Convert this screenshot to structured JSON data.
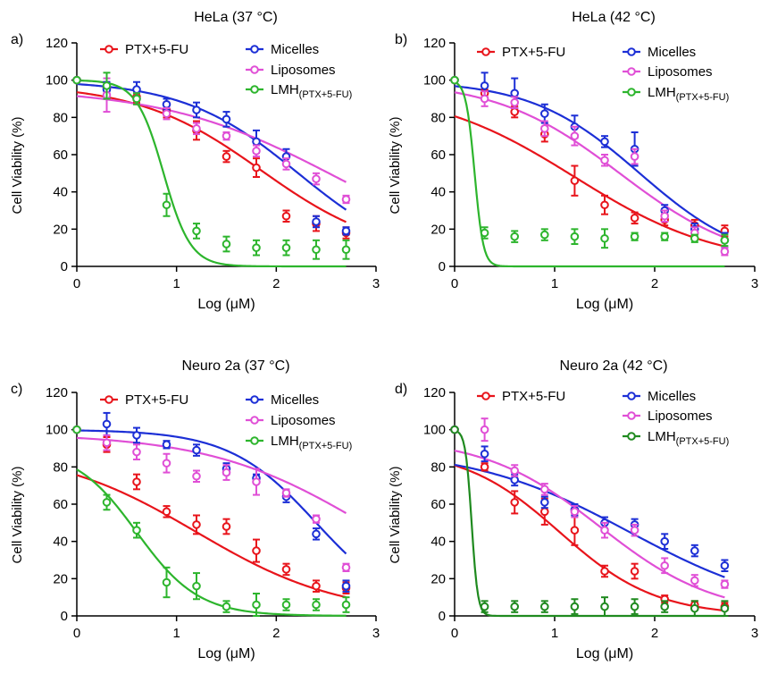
{
  "chart_data": [
    {
      "type": "scatter",
      "panel_label": "a)",
      "title": "HeLa (37 °C)",
      "xlabel": "Log (μM)",
      "ylabel": "Cell Viability (%)",
      "xlim": [
        0,
        3
      ],
      "ylim": [
        0,
        120
      ],
      "xticks": [
        0,
        1,
        2,
        3
      ],
      "yticks": [
        0,
        20,
        40,
        60,
        80,
        100,
        120
      ],
      "x": [
        0,
        0.3,
        0.6,
        0.9,
        1.2,
        1.5,
        1.8,
        2.1,
        2.4,
        2.7
      ],
      "series": [
        {
          "name": "PTX+5-FU",
          "color": "#e8141b",
          "values": [
            100,
            96,
            91,
            84,
            73,
            59,
            53,
            27,
            23,
            18
          ],
          "errors": [
            0,
            3,
            3,
            4,
            5,
            3,
            5,
            3,
            4,
            3
          ],
          "curve": {
            "top": 98,
            "bottom": 5,
            "ic50": 1.85,
            "hill": 0.7
          }
        },
        {
          "name": "Micelles",
          "color": "#1c2fd6",
          "values": [
            100,
            95,
            95,
            87,
            84,
            79,
            67,
            59,
            24,
            19
          ],
          "errors": [
            0,
            4,
            4,
            3,
            4,
            4,
            6,
            4,
            3,
            2
          ],
          "curve": {
            "top": 100,
            "bottom": 0,
            "ic50": 2.22,
            "hill": 0.75
          }
        },
        {
          "name": "Liposomes",
          "color": "#e04fd6",
          "values": [
            100,
            92,
            90,
            82,
            74,
            70,
            62,
            55,
            47,
            36
          ],
          "errors": [
            0,
            9,
            3,
            3,
            3,
            2,
            3,
            3,
            3,
            2
          ],
          "curve": {
            "top": 96,
            "bottom": 0,
            "ic50": 2.6,
            "hill": 0.5
          }
        },
        {
          "name": "LMH",
          "subscript": "(PTX+5-FU)",
          "color": "#2db52d",
          "values": [
            100,
            97,
            90,
            33,
            19,
            12,
            10,
            10,
            9,
            9
          ],
          "errors": [
            0,
            7,
            3,
            6,
            4,
            4,
            4,
            4,
            5,
            5
          ],
          "curve": {
            "top": 100,
            "bottom": 0,
            "ic50": 0.87,
            "hill": 3.2
          }
        }
      ]
    },
    {
      "type": "scatter",
      "panel_label": "b)",
      "title": "HeLa (42 °C)",
      "xlabel": "Log (μM)",
      "ylabel": "Cell Viability (%)",
      "xlim": [
        0,
        3
      ],
      "ylim": [
        0,
        120
      ],
      "xticks": [
        0,
        1,
        2,
        3
      ],
      "yticks": [
        0,
        20,
        40,
        60,
        80,
        100,
        120
      ],
      "x": [
        0,
        0.3,
        0.6,
        0.9,
        1.2,
        1.5,
        1.8,
        2.1,
        2.4,
        2.7
      ],
      "series": [
        {
          "name": "PTX+5-FU",
          "color": "#e8141b",
          "values": [
            100,
            93,
            83,
            71,
            46,
            33,
            26,
            25,
            22,
            19
          ],
          "errors": [
            0,
            2,
            3,
            4,
            8,
            5,
            3,
            3,
            3,
            3
          ],
          "curve": {
            "top": 96,
            "bottom": 0,
            "ic50": 1.2,
            "hill": 0.6
          }
        },
        {
          "name": "Micelles",
          "color": "#1c2fd6",
          "values": [
            100,
            97,
            93,
            82,
            75,
            67,
            63,
            30,
            20,
            14
          ],
          "errors": [
            0,
            7,
            8,
            5,
            6,
            3,
            9,
            3,
            3,
            4
          ],
          "curve": {
            "top": 100,
            "bottom": 0,
            "ic50": 1.85,
            "hill": 0.8
          }
        },
        {
          "name": "Liposomes",
          "color": "#e04fd6",
          "values": [
            100,
            90,
            88,
            74,
            70,
            57,
            59,
            27,
            18,
            8
          ],
          "errors": [
            0,
            4,
            3,
            4,
            5,
            3,
            4,
            3,
            3,
            2
          ],
          "curve": {
            "top": 100,
            "bottom": 0,
            "ic50": 1.65,
            "hill": 0.7
          }
        },
        {
          "name": "LMH",
          "subscript": "(PTX+5-FU)",
          "color": "#2db52d",
          "values": [
            100,
            18,
            16,
            17,
            16,
            15,
            16,
            16,
            15,
            14
          ],
          "errors": [
            0,
            3,
            3,
            3,
            4,
            5,
            2,
            2,
            2,
            3
          ],
          "curve": {
            "top": 100,
            "bottom": 0,
            "ic50": 0.2,
            "hill": 10
          }
        }
      ]
    },
    {
      "type": "scatter",
      "panel_label": "c)",
      "title": "Neuro 2a (37 °C)",
      "xlabel": "Log (μM)",
      "ylabel": "Cell Viability (%)",
      "xlim": [
        0,
        3
      ],
      "ylim": [
        0,
        120
      ],
      "xticks": [
        0,
        1,
        2,
        3
      ],
      "yticks": [
        0,
        20,
        40,
        60,
        80,
        100,
        120
      ],
      "x": [
        0,
        0.3,
        0.6,
        0.9,
        1.2,
        1.5,
        1.8,
        2.1,
        2.4,
        2.7
      ],
      "series": [
        {
          "name": "PTX+5-FU",
          "color": "#e8141b",
          "values": [
            100,
            92,
            72,
            56,
            49,
            48,
            35,
            25,
            16,
            15
          ],
          "errors": [
            0,
            4,
            4,
            3,
            5,
            4,
            6,
            3,
            3,
            3
          ],
          "curve": {
            "top": 90,
            "bottom": 0,
            "ic50": 1.2,
            "hill": 0.6
          }
        },
        {
          "name": "Micelles",
          "color": "#1c2fd6",
          "values": [
            100,
            103,
            97,
            92,
            89,
            79,
            74,
            64,
            44,
            16
          ],
          "errors": [
            0,
            6,
            4,
            2,
            3,
            3,
            2,
            3,
            3,
            3
          ],
          "curve": {
            "top": 100,
            "bottom": 0,
            "ic50": 2.4,
            "hill": 1.0
          }
        },
        {
          "name": "Liposomes",
          "color": "#e04fd6",
          "values": [
            100,
            93,
            88,
            82,
            75,
            77,
            72,
            66,
            52,
            26
          ],
          "errors": [
            0,
            4,
            4,
            5,
            3,
            4,
            7,
            2,
            2,
            2
          ],
          "curve": {
            "top": 98,
            "bottom": 0,
            "ic50": 2.9,
            "hill": 0.55
          }
        },
        {
          "name": "LMH",
          "subscript": "(PTX+5-FU)",
          "color": "#2db52d",
          "values": [
            100,
            61,
            46,
            18,
            16,
            5,
            6,
            6,
            6,
            6
          ],
          "errors": [
            0,
            4,
            4,
            8,
            7,
            3,
            6,
            3,
            3,
            4
          ],
          "curve": {
            "top": 90,
            "bottom": 0,
            "ic50": 0.6,
            "hill": 1.4
          }
        }
      ]
    },
    {
      "type": "scatter",
      "panel_label": "d)",
      "title": "Neuro 2a (42 °C)",
      "xlabel": "Log (μM)",
      "ylabel": "Cell Viability (%)",
      "xlim": [
        0,
        3
      ],
      "ylim": [
        0,
        120
      ],
      "xticks": [
        0,
        1,
        2,
        3
      ],
      "yticks": [
        0,
        20,
        40,
        60,
        80,
        100,
        120
      ],
      "x": [
        0,
        0.3,
        0.6,
        0.9,
        1.2,
        1.5,
        1.8,
        2.1,
        2.4,
        2.7
      ],
      "series": [
        {
          "name": "PTX+5-FU",
          "color": "#e8141b",
          "values": [
            100,
            80,
            61,
            56,
            46,
            24,
            24,
            9,
            6,
            5
          ],
          "errors": [
            0,
            2,
            6,
            7,
            8,
            3,
            4,
            2,
            2,
            2
          ],
          "curve": {
            "top": 90,
            "bottom": 0,
            "ic50": 1.05,
            "hill": 0.9
          }
        },
        {
          "name": "Micelles",
          "color": "#1c2fd6",
          "values": [
            100,
            87,
            73,
            61,
            57,
            50,
            49,
            40,
            35,
            27
          ],
          "errors": [
            0,
            4,
            3,
            3,
            3,
            3,
            3,
            4,
            3,
            3
          ],
          "curve": {
            "top": 90,
            "bottom": 0,
            "ic50": 1.75,
            "hill": 0.55
          }
        },
        {
          "name": "Liposomes",
          "color": "#e04fd6",
          "values": [
            100,
            100,
            78,
            68,
            56,
            46,
            46,
            27,
            19,
            17
          ],
          "errors": [
            0,
            6,
            3,
            3,
            3,
            4,
            3,
            4,
            3,
            2
          ],
          "curve": {
            "top": 96,
            "bottom": 0,
            "ic50": 1.45,
            "hill": 0.75
          }
        },
        {
          "name": "LMH",
          "subscript": "(PTX+5-FU)",
          "color": "#1f8a1f",
          "values": [
            100,
            5,
            5,
            5,
            5,
            5,
            5,
            5,
            4,
            4
          ],
          "errors": [
            0,
            3,
            3,
            3,
            4,
            5,
            4,
            3,
            4,
            4
          ],
          "curve": {
            "top": 100,
            "bottom": 0,
            "ic50": 0.17,
            "hill": 14
          }
        }
      ]
    }
  ]
}
